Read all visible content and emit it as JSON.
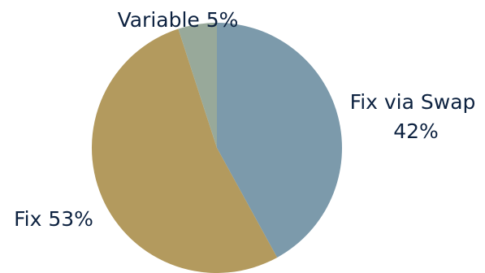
{
  "chart_data": {
    "type": "pie",
    "title": "",
    "start": "12 o'clock",
    "direction": "clockwise",
    "slices": [
      {
        "label": "Fix via Swap",
        "value": 42,
        "display": [
          "Fix via Swap",
          "42%"
        ],
        "color": "#7c9aab"
      },
      {
        "label": "Fix",
        "value": 53,
        "display": [
          "Fix 53%"
        ],
        "color": "#b39a5e"
      },
      {
        "label": "Variable",
        "value": 5,
        "display": [
          "Variable 5%"
        ],
        "color": "#98a99a"
      }
    ],
    "label_color": "#0d2240"
  }
}
